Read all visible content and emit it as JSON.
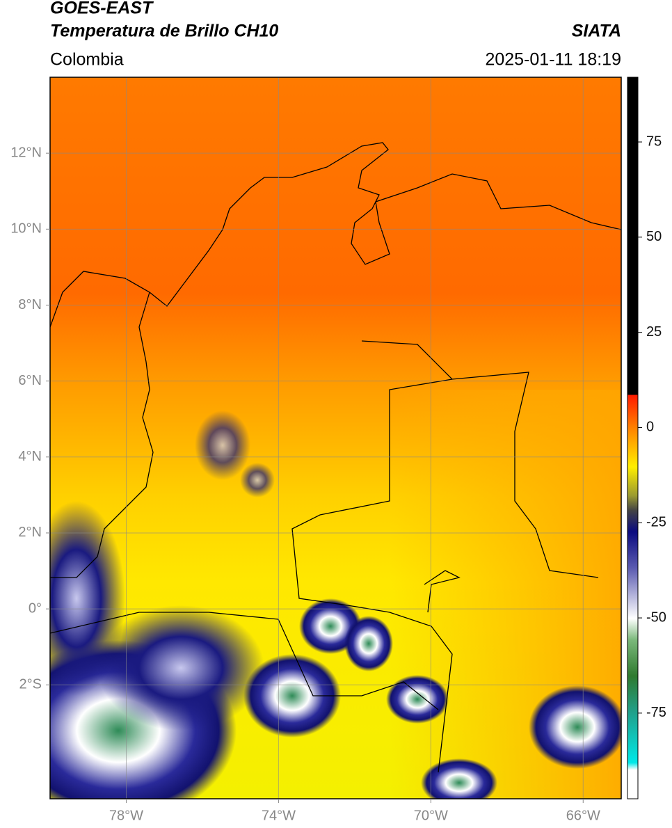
{
  "header": {
    "title": "GOES-EAST",
    "subtitle": "Temperatura de Brillo CH10",
    "source": "SIATA",
    "region": "Colombia",
    "datetime": "2025-01-11 18:19"
  },
  "map": {
    "xlim": [
      -80,
      -65
    ],
    "ylim": [
      -5,
      14
    ],
    "xticks": [
      {
        "value": -78,
        "label": "78°W"
      },
      {
        "value": -74,
        "label": "74°W"
      },
      {
        "value": -70,
        "label": "70°W"
      },
      {
        "value": -66,
        "label": "66°W"
      }
    ],
    "yticks": [
      {
        "value": 12,
        "label": "12°N"
      },
      {
        "value": 10,
        "label": "10°N"
      },
      {
        "value": 8,
        "label": "8°N"
      },
      {
        "value": 6,
        "label": "6°N"
      },
      {
        "value": 4,
        "label": "4°N"
      },
      {
        "value": 2,
        "label": "2°N"
      },
      {
        "value": 0,
        "label": "0°"
      },
      {
        "value": -2,
        "label": "2°S"
      }
    ],
    "grid": true
  },
  "colorbar": {
    "lim": [
      -97.5,
      92
    ],
    "ticks": [
      75,
      50,
      25,
      0,
      -25,
      -50,
      -75
    ]
  }
}
